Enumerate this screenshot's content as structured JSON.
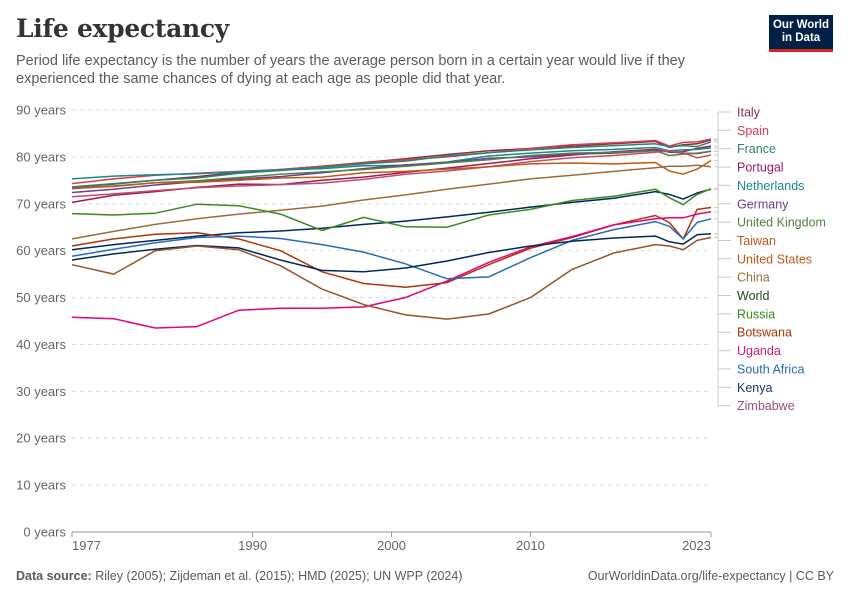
{
  "header": {
    "title": "Life expectancy",
    "subtitle": "Period life expectancy is the number of years the average person born in a certain year would live if they experienced the same chances of dying at each age as people did that year.",
    "logo_line1": "Our World",
    "logo_line2": "in Data"
  },
  "footer": {
    "source_label": "Data source:",
    "source_text": "Riley (2005); Zijdeman et al. (2015); HMD (2025); UN WPP (2024)",
    "link_text": "OurWorldinData.org/life-expectancy | CC BY"
  },
  "chart_data": {
    "type": "line",
    "title": "Life expectancy",
    "xlabel": "",
    "ylabel": "",
    "xlim": [
      1977,
      2023
    ],
    "ylim": [
      0,
      90
    ],
    "grid": true,
    "legend_position": "right",
    "x_ticks": [
      1977,
      1990,
      2000,
      2010,
      2023
    ],
    "y_ticks": [
      {
        "value": 0,
        "label": "0 years"
      },
      {
        "value": 10,
        "label": "10 years"
      },
      {
        "value": 20,
        "label": "20 years"
      },
      {
        "value": 30,
        "label": "30 years"
      },
      {
        "value": 40,
        "label": "40 years"
      },
      {
        "value": 50,
        "label": "50 years"
      },
      {
        "value": 60,
        "label": "60 years"
      },
      {
        "value": 70,
        "label": "70 years"
      },
      {
        "value": 80,
        "label": "80 years"
      },
      {
        "value": 90,
        "label": "90 years"
      }
    ],
    "x": [
      1977,
      1980,
      1983,
      1986,
      1989,
      1992,
      1995,
      1998,
      2001,
      2004,
      2007,
      2010,
      2013,
      2016,
      2019,
      2020,
      2021,
      2022,
      2023
    ],
    "series": [
      {
        "name": "Italy",
        "color": "#8c2f46",
        "values": [
          73.5,
          74.2,
          75.0,
          75.8,
          76.7,
          77.3,
          78.0,
          78.8,
          79.6,
          80.5,
          81.3,
          81.8,
          82.3,
          82.8,
          83.3,
          82.0,
          82.6,
          82.8,
          83.6
        ]
      },
      {
        "name": "Spain",
        "color": "#d73c50",
        "values": [
          74.3,
          75.3,
          76.1,
          76.5,
          76.9,
          77.3,
          78.0,
          78.7,
          79.4,
          80.0,
          80.9,
          81.8,
          82.6,
          83.0,
          83.5,
          82.3,
          83.1,
          83.2,
          83.8
        ]
      },
      {
        "name": "France",
        "color": "#2c8465",
        "values": [
          73.6,
          74.3,
          75.0,
          75.5,
          76.5,
          77.1,
          77.8,
          78.5,
          79.1,
          80.2,
          80.9,
          81.5,
          82.0,
          82.4,
          82.8,
          82.2,
          82.4,
          82.2,
          83.2
        ]
      },
      {
        "name": "Portugal",
        "color": "#a2185b",
        "values": [
          70.3,
          71.8,
          72.6,
          73.5,
          74.2,
          74.1,
          75.0,
          75.7,
          76.7,
          77.6,
          78.6,
          79.6,
          80.4,
          81.1,
          81.6,
          81.0,
          81.1,
          81.8,
          82.3
        ]
      },
      {
        "name": "Netherlands",
        "color": "#18898b",
        "values": [
          75.3,
          75.9,
          76.2,
          76.4,
          76.8,
          77.2,
          77.5,
          78.1,
          78.2,
          78.9,
          80.2,
          80.8,
          81.3,
          81.6,
          82.0,
          81.3,
          81.5,
          81.6,
          81.9
        ]
      },
      {
        "name": "Germany",
        "color": "#6d3e91",
        "values": [
          72.4,
          73.1,
          74.0,
          74.7,
          75.3,
          75.8,
          76.6,
          77.5,
          78.3,
          78.8,
          79.7,
          80.0,
          80.6,
          80.8,
          81.3,
          81.1,
          80.8,
          80.7,
          81.2
        ]
      },
      {
        "name": "United Kingdom",
        "color": "#578145",
        "values": [
          73.2,
          73.8,
          74.5,
          74.9,
          75.6,
          76.3,
          76.8,
          77.3,
          78.0,
          78.7,
          79.4,
          80.3,
          80.8,
          81.0,
          81.3,
          80.3,
          80.6,
          80.8,
          81.2
        ]
      },
      {
        "name": "Taiwan",
        "color": "#c15065",
        "values": [
          71.5,
          72.1,
          72.8,
          73.4,
          73.8,
          74.1,
          74.4,
          75.2,
          76.3,
          77.0,
          77.9,
          79.0,
          79.8,
          80.3,
          81.0,
          81.3,
          80.9,
          79.8,
          80.4
        ]
      },
      {
        "name": "United States",
        "color": "#c05917",
        "values": [
          73.3,
          73.7,
          74.5,
          74.6,
          75.0,
          75.5,
          75.7,
          76.6,
          76.9,
          77.4,
          77.9,
          78.5,
          78.7,
          78.5,
          78.8,
          77.0,
          76.3,
          77.4,
          79.2
        ]
      },
      {
        "name": "China",
        "color": "#996d39",
        "values": [
          62.5,
          64.1,
          65.6,
          66.8,
          67.8,
          68.6,
          69.5,
          70.8,
          71.9,
          73.1,
          74.2,
          75.3,
          76.1,
          76.9,
          77.7,
          78.0,
          78.0,
          78.2,
          77.9
        ]
      },
      {
        "name": "World",
        "color": "#00295b",
        "values": [
          60.2,
          61.3,
          62.2,
          63.1,
          63.8,
          64.2,
          64.8,
          65.6,
          66.3,
          67.2,
          68.2,
          69.3,
          70.3,
          71.2,
          72.6,
          72.0,
          71.0,
          72.3,
          73.1
        ]
      },
      {
        "name": "Russia",
        "color": "#3c8a1e",
        "values": [
          67.9,
          67.6,
          68.0,
          69.9,
          69.6,
          67.8,
          64.3,
          67.1,
          65.1,
          65.0,
          67.6,
          68.8,
          70.7,
          71.6,
          73.1,
          71.3,
          69.8,
          72.0,
          73.2
        ]
      },
      {
        "name": "Botswana",
        "color": "#b13507",
        "values": [
          61.0,
          62.5,
          63.5,
          63.8,
          62.5,
          60.0,
          55.5,
          53.0,
          52.2,
          53.2,
          57.0,
          60.5,
          62.8,
          65.5,
          67.5,
          66.0,
          62.5,
          68.8,
          69.2
        ]
      },
      {
        "name": "Uganda",
        "color": "#e6007e",
        "values": [
          45.8,
          45.5,
          43.5,
          43.8,
          47.3,
          47.7,
          47.7,
          48.0,
          50.0,
          53.5,
          57.5,
          60.8,
          63.0,
          65.5,
          66.8,
          67.0,
          67.0,
          67.8,
          68.3
        ]
      },
      {
        "name": "South Africa",
        "color": "#286bbb",
        "values": [
          58.8,
          60.3,
          61.7,
          62.8,
          63.1,
          62.6,
          61.3,
          59.7,
          57.2,
          54.0,
          54.4,
          58.5,
          62.2,
          64.5,
          66.2,
          65.2,
          62.5,
          66.0,
          66.8
        ]
      },
      {
        "name": "Kenya",
        "color": "#00295b",
        "values": [
          58.0,
          59.3,
          60.3,
          61.1,
          60.6,
          58.0,
          55.8,
          55.5,
          56.3,
          57.8,
          59.6,
          61.0,
          62.0,
          62.7,
          63.1,
          61.9,
          61.4,
          63.4,
          63.6
        ]
      },
      {
        "name": "Zimbabwe",
        "color": "#9a5129",
        "values": [
          57.0,
          55.0,
          60.0,
          61.0,
          60.2,
          56.8,
          51.8,
          48.5,
          46.3,
          45.4,
          46.5,
          50.0,
          56.0,
          59.5,
          61.3,
          61.0,
          60.2,
          62.2,
          62.8
        ]
      }
    ]
  }
}
